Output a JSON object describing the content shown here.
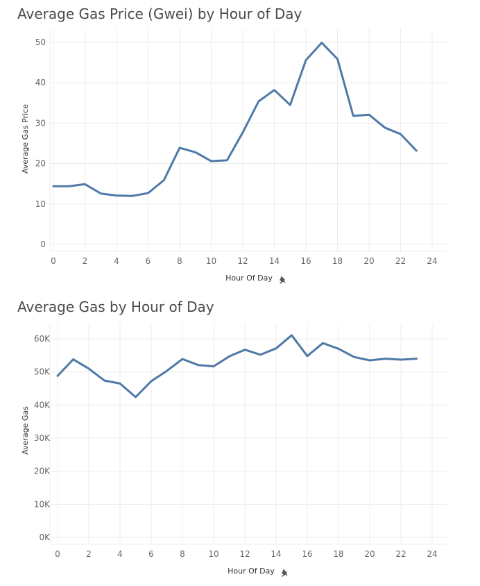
{
  "chart_data": [
    {
      "type": "line",
      "title": "Average Gas Price (Gwei) by Hour of Day",
      "xlabel": "Hour Of Day",
      "ylabel": "Average Gas Price",
      "xlim": [
        0,
        24
      ],
      "ylim": [
        0,
        50
      ],
      "x_ticks": [
        "0",
        "2",
        "4",
        "6",
        "8",
        "10",
        "12",
        "14",
        "16",
        "18",
        "20",
        "22",
        "24"
      ],
      "y_ticks": [
        "0",
        "10",
        "20",
        "30",
        "40",
        "50"
      ],
      "grid": true,
      "x": [
        0,
        1,
        2,
        3,
        4,
        5,
        6,
        7,
        8,
        9,
        10,
        11,
        12,
        13,
        14,
        15,
        16,
        17,
        18,
        19,
        20,
        21,
        22,
        23
      ],
      "values": [
        14.4,
        14.4,
        14.9,
        12.6,
        12.1,
        12.0,
        12.7,
        15.9,
        23.9,
        22.8,
        20.6,
        20.8,
        27.7,
        35.4,
        38.2,
        34.5,
        45.6,
        49.9,
        45.9,
        31.8,
        32.1,
        28.9,
        27.3,
        23.2
      ],
      "series_color": "#4e79a7"
    },
    {
      "type": "line",
      "title": "Average Gas by Hour of Day",
      "xlabel": "Hour Of Day",
      "ylabel": "Average Gas",
      "xlim": [
        0,
        24
      ],
      "ylim": [
        0,
        60000
      ],
      "x_ticks": [
        "0",
        "2",
        "4",
        "6",
        "8",
        "10",
        "12",
        "14",
        "16",
        "18",
        "20",
        "22",
        "24"
      ],
      "y_ticks": [
        "0K",
        "10K",
        "20K",
        "30K",
        "40K",
        "50K",
        "60K"
      ],
      "grid": true,
      "x": [
        0,
        1,
        2,
        3,
        4,
        5,
        6,
        7,
        8,
        9,
        10,
        11,
        12,
        13,
        14,
        15,
        16,
        17,
        18,
        19,
        20,
        21,
        22,
        23
      ],
      "values": [
        48800,
        53800,
        51000,
        47400,
        46500,
        42400,
        47200,
        50300,
        53900,
        52100,
        51700,
        54700,
        56700,
        55200,
        57100,
        61100,
        54800,
        58700,
        57000,
        54500,
        53500,
        54000,
        53700,
        54000
      ],
      "series_color": "#4e79a7"
    }
  ],
  "icons": {
    "axis_pin": "pin-icon"
  }
}
